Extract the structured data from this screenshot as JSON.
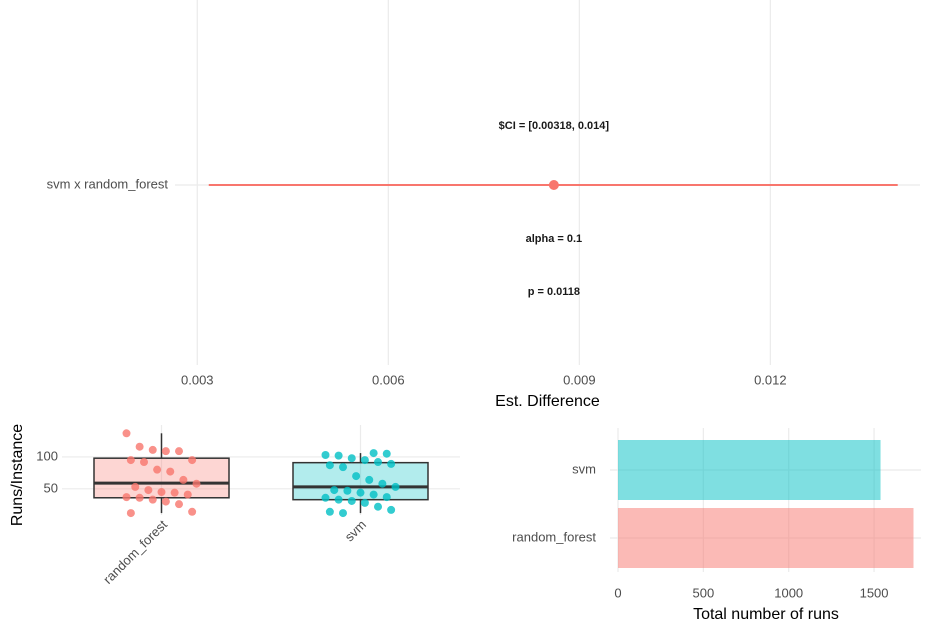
{
  "chart_data": [
    {
      "type": "interval",
      "categories": [
        "svm x random_forest"
      ],
      "estimate": [
        0.0086
      ],
      "lower": [
        0.00318
      ],
      "upper": [
        0.014
      ],
      "color": "#f8766d",
      "annotations": [
        "$CI = [0.00318, 0.014]",
        "alpha = 0.1",
        "p = 0.0118"
      ],
      "x_label": "Est. Difference",
      "xlim": [
        0.00265,
        0.01435
      ],
      "xticks": [
        0.003,
        0.006,
        0.009,
        0.012
      ],
      "grid": true
    },
    {
      "type": "box",
      "categories": [
        "random_forest",
        "svm"
      ],
      "colors": [
        "#f8766d",
        "#00bfc4"
      ],
      "min": [
        12,
        12
      ],
      "q1": [
        36,
        33
      ],
      "median": [
        59,
        53
      ],
      "q3": [
        98,
        91
      ],
      "max": [
        137,
        106
      ],
      "points": [
        [
          137,
          116,
          111,
          109,
          109,
          95,
          95,
          92,
          80,
          77,
          64,
          58,
          53,
          48,
          45,
          44,
          41,
          37,
          36,
          33,
          30,
          26,
          14,
          12
        ],
        [
          106,
          105,
          103,
          102,
          98,
          95,
          92,
          89,
          87,
          84,
          70,
          64,
          58,
          53,
          48,
          47,
          44,
          41,
          37,
          36,
          33,
          31,
          28,
          22,
          17,
          14,
          12
        ]
      ],
      "y_label": "Runs/Instance",
      "ylim": [
        9,
        150
      ],
      "yticks": [
        50,
        100
      ],
      "grid": true
    },
    {
      "type": "bar",
      "categories": [
        "random_forest",
        "svm"
      ],
      "values": [
        1731,
        1538
      ],
      "colors": [
        "#f8766d",
        "#00bfc4"
      ],
      "x_label": "Total number of runs",
      "xlim": [
        0,
        1775
      ],
      "xticks": [
        0,
        500,
        1000,
        1500
      ],
      "grid": true
    }
  ]
}
